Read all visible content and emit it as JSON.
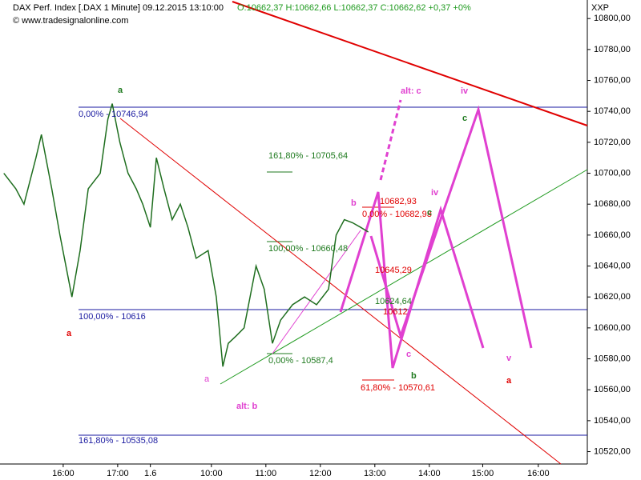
{
  "chart_data": {
    "type": "line",
    "title": "DAX Perf. Index [.DAX  1 Minute] 09.12.2015 13:10:00",
    "quote": "O:10662,37 H:10662,66 L:10662,37 C:10662,62 +0,37 +0%",
    "source": "© www.tradesignalonline.com",
    "symbol": "XXP",
    "x": [
      -1.09,
      -0.87,
      -0.72,
      -0.5,
      -0.4,
      -0.21,
      -0.06,
      0.16,
      0.31,
      0.46,
      0.68,
      0.82,
      0.9,
      1.04,
      1.19,
      1.34,
      1.46,
      1.6,
      1.71,
      1.85,
      2.0,
      2.15,
      2.29,
      2.44,
      2.66,
      2.81,
      2.93,
      3.03,
      3.18,
      3.32,
      3.54,
      3.69,
      3.84,
      3.99,
      4.21,
      4.43,
      4.65,
      4.87,
      5.01,
      5.16,
      5.31,
      5.46,
      5.6
    ],
    "series": [
      {
        "color": "#1f6e1f",
        "values": [
          10700,
          10690,
          10680,
          10710,
          10725,
          10690,
          10660,
          10620,
          10650,
          10690,
          10700,
          10735,
          10745,
          10720,
          10700,
          10690,
          10680,
          10665,
          10710,
          10690,
          10670,
          10680,
          10665,
          10645,
          10650,
          10620,
          10575,
          10590,
          10595,
          10600,
          10640,
          10625,
          10590,
          10605,
          10615,
          10620,
          10615,
          10625,
          10660,
          10670,
          10668,
          10665,
          10662
        ]
      }
    ],
    "xlim": [
      -1.16,
      9.62
    ],
    "xticks": [
      {
        "value": 0,
        "label": "16:00"
      },
      {
        "value": 1,
        "label": "17:00"
      },
      1.6,
      {
        "value": 2.72,
        "label": "10:00"
      },
      {
        "value": 3.72,
        "label": "11:00"
      },
      {
        "value": 4.72,
        "label": "12:00"
      },
      {
        "value": 5.72,
        "label": "13:00"
      },
      {
        "value": 6.72,
        "label": "14:00"
      },
      {
        "value": 7.7,
        "label": "15:00"
      },
      {
        "value": 8.72,
        "label": "16:00"
      }
    ],
    "ylim": [
      10512,
      10812
    ],
    "yticks": [
      {
        "value": 10520,
        "label": "10520,00"
      },
      {
        "value": 10540,
        "label": "10540,00"
      },
      {
        "value": 10560,
        "label": "10560,00"
      },
      {
        "value": 10580,
        "label": "10580,00"
      },
      {
        "value": 10600,
        "label": "10600,00"
      },
      {
        "value": 10620,
        "label": "10620,00"
      },
      {
        "value": 10640,
        "label": "10640,00"
      },
      {
        "value": 10660,
        "label": "10660,00"
      },
      {
        "value": 10680,
        "label": "10680,00"
      },
      {
        "value": 10700,
        "label": "10700,00"
      },
      {
        "value": 10720,
        "label": "10720,00"
      },
      {
        "value": 10740,
        "label": "10740,00"
      },
      {
        "value": 10760,
        "label": "10760,00"
      },
      {
        "value": 10780,
        "label": "10780,00"
      },
      {
        "value": 10800,
        "label": "10800,00"
      }
    ],
    "annotations": [
      {
        "text": "a",
        "color": "#1f7a1f"
      },
      {
        "text": "0,00% - 10746,94",
        "color": "#1a1aa0"
      },
      {
        "text": "a",
        "color": "#e00000"
      },
      {
        "text": "100,00% - 10616",
        "color": "#1a1aa0"
      },
      {
        "text": "161,80% - 10535,08",
        "color": "#1a1aa0"
      },
      {
        "text": "161,80% - 10705,64",
        "color": "#1f7a1f"
      },
      {
        "text": "100,00% - 10660,48",
        "color": "#1f7a1f"
      },
      {
        "text": "0,00% - 10587,4",
        "color": "#1f7a1f"
      },
      {
        "text": "a",
        "color": "#e040d0"
      },
      {
        "text": "alt: b",
        "color": "#e040d0"
      },
      {
        "text": "b",
        "color": "#e040d0"
      },
      {
        "text": "10682,93",
        "color": "#e00000"
      },
      {
        "text": "0,00% - 10682,93",
        "color": "#e00000"
      },
      {
        "text": "c",
        "color": "#1f7a1f"
      },
      {
        "text": "10645,29",
        "color": "#e00000"
      },
      {
        "text": "10624,64",
        "color": "#1f7a1f"
      },
      {
        "text": "10612",
        "color": "#e00000"
      },
      {
        "text": "alt: c",
        "color": "#e040d0"
      },
      {
        "text": "iv",
        "color": "#e040d0"
      },
      {
        "text": "c",
        "color": "#1f7a1f"
      },
      {
        "text": "iv",
        "color": "#e040d0"
      },
      {
        "text": "c",
        "color": "#e040d0"
      },
      {
        "text": "b",
        "color": "#1f7a1f"
      },
      {
        "text": "61,80% - 10570,61",
        "color": "#e00000"
      },
      {
        "text": "v",
        "color": "#e040d0"
      },
      {
        "text": "a",
        "color": "#e00000"
      }
    ]
  }
}
